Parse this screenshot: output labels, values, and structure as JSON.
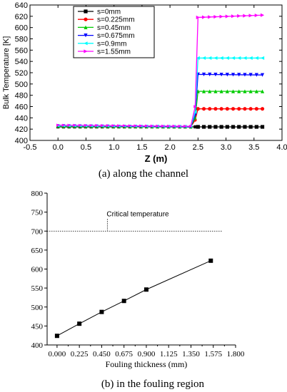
{
  "captions": {
    "a": "(a) along the channel",
    "b": "(b) in the fouling region"
  },
  "chart_data": [
    {
      "type": "line",
      "xlabel": "Z (m)",
      "ylabel": "Bulk Temperature [K]",
      "xlim": [
        -0.5,
        4.0
      ],
      "ylim": [
        400,
        640
      ],
      "xticks": [
        "-0.5",
        "0.0",
        "0.5",
        "1.0",
        "1.5",
        "2.0",
        "2.5",
        "3.0",
        "3.5",
        "4.0"
      ],
      "yticks": [
        "400",
        "420",
        "440",
        "460",
        "480",
        "500",
        "520",
        "540",
        "560",
        "580",
        "600",
        "620",
        "640"
      ],
      "legend_position": "top-left",
      "grid": false,
      "series": [
        {
          "name": "s=0mm",
          "color": "#000000",
          "marker": "square",
          "x": [
            0.0,
            2.37,
            2.45,
            2.5,
            3.65
          ],
          "y": [
            424,
            424,
            424,
            424,
            424
          ]
        },
        {
          "name": "s=0.225mm",
          "color": "#ff0000",
          "marker": "circle",
          "x": [
            0.0,
            2.37,
            2.45,
            2.5,
            3.65
          ],
          "y": [
            425,
            424,
            436,
            456,
            456
          ]
        },
        {
          "name": "s=0.45mm",
          "color": "#00cc00",
          "marker": "triangle-up",
          "x": [
            0.0,
            2.37,
            2.45,
            2.5,
            3.65
          ],
          "y": [
            425,
            424,
            440,
            487,
            487
          ]
        },
        {
          "name": "s=0.675mm",
          "color": "#0000ff",
          "marker": "triangle-down",
          "x": [
            0.0,
            2.37,
            2.45,
            2.5,
            3.65
          ],
          "y": [
            426,
            424,
            445,
            517,
            516
          ]
        },
        {
          "name": "s=0.9mm",
          "color": "#00ffff",
          "marker": "triangle-left",
          "x": [
            0.0,
            2.37,
            2.45,
            2.5,
            3.65
          ],
          "y": [
            426,
            425,
            450,
            546,
            546
          ]
        },
        {
          "name": "s=1.55mm",
          "color": "#ff00ff",
          "marker": "triangle-right",
          "x": [
            0.0,
            2.37,
            2.45,
            2.5,
            3.65
          ],
          "y": [
            427,
            425,
            460,
            618,
            622
          ]
        }
      ]
    },
    {
      "type": "line",
      "xlabel": "Fouling thickness (mm)",
      "ylabel": "",
      "xlim": [
        -0.1,
        1.8
      ],
      "ylim": [
        400,
        800
      ],
      "xticks": [
        "0.000",
        "0.225",
        "0.450",
        "0.675",
        "0.900",
        "1.125",
        "1.350",
        "1.575",
        "1.800"
      ],
      "yticks": [
        "400",
        "450",
        "500",
        "550",
        "600",
        "650",
        "700",
        "750",
        "800"
      ],
      "grid": false,
      "series": [
        {
          "name": "",
          "color": "#000000",
          "marker": "square",
          "x": [
            0.0,
            0.225,
            0.45,
            0.675,
            0.9,
            1.55
          ],
          "y": [
            424,
            456,
            487,
            516,
            546,
            622
          ]
        }
      ],
      "reference_line": {
        "y": 700,
        "label": "Critical temperature",
        "style": "dotted",
        "x_range": [
          -0.1,
          1.66
        ]
      }
    }
  ]
}
